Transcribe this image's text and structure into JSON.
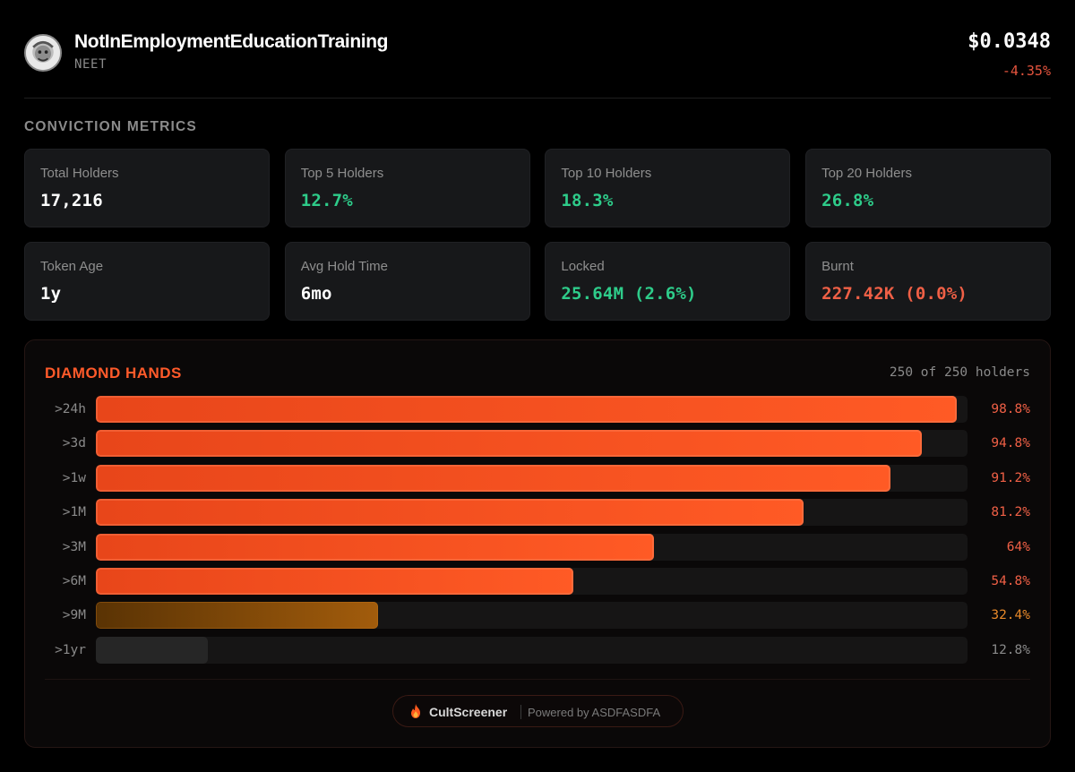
{
  "token": {
    "name": "NotInEmploymentEducationTraining",
    "symbol": "NEET",
    "price": "$0.0348",
    "change": "-4.35%"
  },
  "conviction": {
    "title": "CONVICTION METRICS",
    "cards": [
      {
        "label": "Total Holders",
        "value": "17,216",
        "tone": "white"
      },
      {
        "label": "Top 5 Holders",
        "value": "12.7%",
        "tone": "green"
      },
      {
        "label": "Top 10 Holders",
        "value": "18.3%",
        "tone": "green"
      },
      {
        "label": "Top 20 Holders",
        "value": "26.8%",
        "tone": "green"
      },
      {
        "label": "Token Age",
        "value": "1y",
        "tone": "white"
      },
      {
        "label": "Avg Hold Time",
        "value": "6mo",
        "tone": "white"
      },
      {
        "label": "Locked",
        "value": "25.64M (2.6%)",
        "tone": "green"
      },
      {
        "label": "Burnt",
        "value": "227.42K (0.0%)",
        "tone": "red"
      }
    ]
  },
  "diamond_hands": {
    "title": "DIAMOND HANDS",
    "count": "250 of 250 holders",
    "rows": [
      {
        "label": ">24h",
        "pct": "98.8%",
        "value": 98.8,
        "tone": "orange",
        "pct_color": "#f06046"
      },
      {
        "label": ">3d",
        "pct": "94.8%",
        "value": 94.8,
        "tone": "orange",
        "pct_color": "#f06046"
      },
      {
        "label": ">1w",
        "pct": "91.2%",
        "value": 91.2,
        "tone": "orange",
        "pct_color": "#f06046"
      },
      {
        "label": ">1M",
        "pct": "81.2%",
        "value": 81.2,
        "tone": "orange",
        "pct_color": "#f06046"
      },
      {
        "label": ">3M",
        "pct": "64%",
        "value": 64,
        "tone": "orange",
        "pct_color": "#f06046"
      },
      {
        "label": ">6M",
        "pct": "54.8%",
        "value": 54.8,
        "tone": "orange",
        "pct_color": "#f06046"
      },
      {
        "label": ">9M",
        "pct": "32.4%",
        "value": 32.4,
        "tone": "mid",
        "pct_color": "#e8892a"
      },
      {
        "label": ">1yr",
        "pct": "12.8%",
        "value": 12.8,
        "tone": "low",
        "pct_color": "#8a8a8a"
      }
    ]
  },
  "footer": {
    "brand": "CultScreener",
    "powered": "Powered by ASDFASDFA",
    "icon": "flame-icon"
  },
  "colors": {
    "accent": "#ff5a2a",
    "green": "#2ecc8a",
    "red": "#f06046"
  }
}
